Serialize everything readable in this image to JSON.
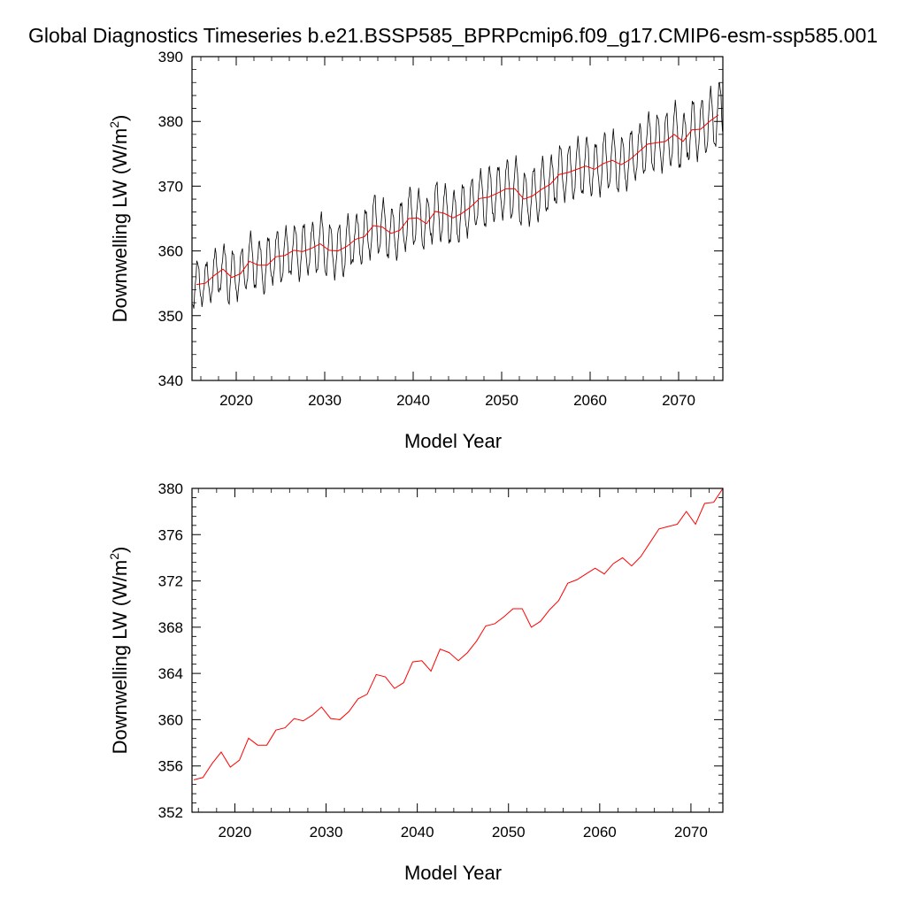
{
  "title": "Global Diagnostics Timeseries b.e21.BSSP585_BPRPcmip6.f09_g17.CMIP6-esm-ssp585.001",
  "colors": {
    "monthly": "#000000",
    "annual": "#ff0000",
    "axes": "#000000"
  },
  "chart_data": [
    {
      "type": "line",
      "xlabel": "Model Year",
      "ylabel": "Downwelling LW (W/m",
      "ylabel_sup": "2",
      "ylabel_close": ")",
      "xlim": [
        2015,
        2075
      ],
      "ylim": [
        340,
        390
      ],
      "x_ticks": [
        2020,
        2030,
        2040,
        2050,
        2060,
        2070
      ],
      "x_tick_labels": [
        "2020",
        "2030",
        "2040",
        "2050",
        "2060",
        "2070"
      ],
      "y_ticks": [
        340,
        350,
        360,
        370,
        380,
        390
      ],
      "y_tick_labels": [
        "340",
        "350",
        "360",
        "370",
        "380",
        "390"
      ],
      "series": [
        {
          "kind": "monthly",
          "color": "#000000",
          "x_start": 2015.042,
          "x_step": 0.08333,
          "annual_mean": [
            354.8,
            355.0,
            356.2,
            357.2,
            355.9,
            356.5,
            358.4,
            357.8,
            357.8,
            359.1,
            359.3,
            360.1,
            359.9,
            360.4,
            361.1,
            360.1,
            360.0,
            360.7,
            361.8,
            362.2,
            363.9,
            363.7,
            362.7,
            363.2,
            365.0,
            365.1,
            364.2,
            366.1,
            365.8,
            365.1,
            365.8,
            366.8,
            368.1,
            368.3,
            368.9,
            369.6,
            369.6,
            368.0,
            368.5,
            369.5,
            370.3,
            371.8,
            372.1,
            372.6,
            373.1,
            372.6,
            373.5,
            374.0,
            373.3,
            374.1,
            375.3,
            376.5,
            376.7,
            376.9,
            378.0,
            376.9,
            378.7,
            378.8,
            380.0,
            381.0
          ],
          "seasonal_amplitude": [
            3.6,
            3.2,
            3.9,
            3.5,
            4.1,
            3.8,
            4.2,
            3.6,
            4.4,
            3.9,
            4.1,
            3.7,
            4.3,
            3.8,
            4.5,
            3.9,
            4.0,
            4.6,
            3.7,
            4.2,
            4.8,
            4.0,
            3.8,
            4.4,
            4.7,
            4.1,
            3.9,
            4.6,
            4.2,
            4.0,
            4.5,
            4.3,
            4.1,
            4.7,
            4.2,
            4.4,
            4.6,
            4.0,
            4.3,
            4.8,
            4.2,
            4.5,
            4.1,
            4.6,
            4.4,
            4.0,
            4.7,
            4.3,
            4.2,
            4.5,
            4.1,
            4.6,
            4.3,
            4.4,
            4.8,
            4.2,
            4.6,
            4.5,
            4.9,
            5.0
          ]
        },
        {
          "kind": "annual-running-mean",
          "color": "#ff0000",
          "x_start": 2015.5,
          "x_step": 1,
          "values": [
            354.8,
            355.0,
            356.2,
            357.2,
            355.9,
            356.5,
            358.4,
            357.8,
            357.8,
            359.1,
            359.3,
            360.1,
            359.9,
            360.4,
            361.1,
            360.1,
            360.0,
            360.7,
            361.8,
            362.2,
            363.9,
            363.7,
            362.7,
            363.2,
            365.0,
            365.1,
            364.2,
            366.1,
            365.8,
            365.1,
            365.8,
            366.8,
            368.1,
            368.3,
            368.9,
            369.6,
            369.6,
            368.0,
            368.5,
            369.5,
            370.3,
            371.8,
            372.1,
            372.6,
            373.1,
            372.6,
            373.5,
            374.0,
            373.3,
            374.1,
            375.3,
            376.5,
            376.7,
            376.9,
            378.0,
            376.9,
            378.7,
            378.8,
            380.0,
            381.0
          ]
        }
      ]
    },
    {
      "type": "line",
      "xlabel": "Model Year",
      "ylabel": "Downwelling LW (W/m",
      "ylabel_sup": "2",
      "ylabel_close": ")",
      "xlim": [
        2015.3,
        2073.5
      ],
      "ylim": [
        352,
        380
      ],
      "x_ticks": [
        2020,
        2030,
        2040,
        2050,
        2060,
        2070
      ],
      "x_tick_labels": [
        "2020",
        "2030",
        "2040",
        "2050",
        "2060",
        "2070"
      ],
      "y_ticks": [
        352,
        356,
        360,
        364,
        368,
        372,
        376,
        380
      ],
      "y_tick_labels": [
        "352",
        "356",
        "360",
        "364",
        "368",
        "372",
        "376",
        "380"
      ],
      "series": [
        {
          "kind": "annual-mean",
          "color": "#ff0000",
          "x": [
            2015.5,
            2016.5,
            2017.5,
            2018.5,
            2019.5,
            2020.5,
            2021.5,
            2022.5,
            2023.5,
            2024.5,
            2025.5,
            2026.5,
            2027.5,
            2028.5,
            2029.5,
            2030.5,
            2031.5,
            2032.5,
            2033.5,
            2034.5,
            2035.5,
            2036.5,
            2037.5,
            2038.5,
            2039.5,
            2040.5,
            2041.5,
            2042.5,
            2043.5,
            2044.5,
            2045.5,
            2046.5,
            2047.5,
            2048.5,
            2049.5,
            2050.5,
            2051.5,
            2052.5,
            2053.5,
            2054.5,
            2055.5,
            2056.5,
            2057.5,
            2058.5,
            2059.5,
            2060.5,
            2061.5,
            2062.5,
            2063.5,
            2064.5,
            2065.5,
            2066.5,
            2067.5,
            2068.5,
            2069.5,
            2070.5,
            2071.5,
            2072.5,
            2073.5
          ],
          "values": [
            354.8,
            355.0,
            356.2,
            357.2,
            355.9,
            356.5,
            358.4,
            357.8,
            357.8,
            359.1,
            359.3,
            360.1,
            359.9,
            360.4,
            361.1,
            360.1,
            360.0,
            360.7,
            361.8,
            362.2,
            363.9,
            363.7,
            362.7,
            363.2,
            365.0,
            365.1,
            364.2,
            366.1,
            365.8,
            365.1,
            365.8,
            366.8,
            368.1,
            368.3,
            368.9,
            369.6,
            369.6,
            368.0,
            368.5,
            369.5,
            370.3,
            371.8,
            372.1,
            372.6,
            373.1,
            372.6,
            373.5,
            374.0,
            373.3,
            374.1,
            375.3,
            376.5,
            376.7,
            376.9,
            378.0,
            376.9,
            378.7,
            378.8,
            380.0
          ]
        }
      ]
    }
  ]
}
